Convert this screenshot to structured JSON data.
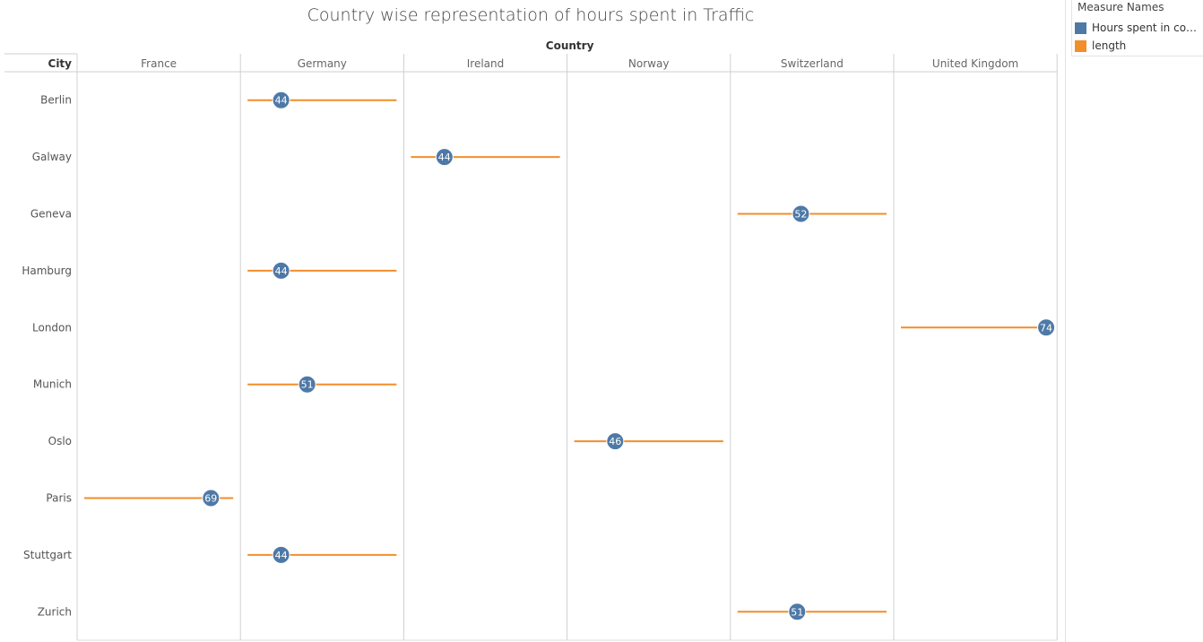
{
  "chart_data": {
    "type": "dot-plot",
    "title": "Country wise representation of hours spent in Traffic",
    "column_header": "Country",
    "row_header": "City",
    "countries": [
      "France",
      "Germany",
      "Ireland",
      "Norway",
      "Switzerland",
      "United Kingdom"
    ],
    "cities": [
      "Berlin",
      "Galway",
      "Geneva",
      "Hamburg",
      "London",
      "Munich",
      "Oslo",
      "Paris",
      "Stuttgart",
      "Zurich"
    ],
    "series": [
      {
        "name": "Hours spent in conge..",
        "color": "#4e79a7",
        "marker": "circle"
      },
      {
        "name": "length",
        "color": "#f28e2b",
        "marker": "line"
      }
    ],
    "xlim": [
      35,
      75
    ],
    "points": [
      {
        "city": "Berlin",
        "country": "Germany",
        "hours": 44,
        "label": "44"
      },
      {
        "city": "Galway",
        "country": "Ireland",
        "hours": 44,
        "label": "44"
      },
      {
        "city": "Geneva",
        "country": "Switzerland",
        "hours": 52,
        "label": "52"
      },
      {
        "city": "Hamburg",
        "country": "Germany",
        "hours": 44,
        "label": "44"
      },
      {
        "city": "London",
        "country": "United Kingdom",
        "hours": 74,
        "label": "74"
      },
      {
        "city": "Munich",
        "country": "Germany",
        "hours": 51,
        "label": "51"
      },
      {
        "city": "Oslo",
        "country": "Norway",
        "hours": 46,
        "label": "46"
      },
      {
        "city": "Paris",
        "country": "France",
        "hours": 69,
        "label": "69"
      },
      {
        "city": "Stuttgart",
        "country": "Germany",
        "hours": 44,
        "label": "44"
      },
      {
        "city": "Zurich",
        "country": "Switzerland",
        "hours": 51,
        "label": "51"
      }
    ]
  },
  "legend": {
    "title": "Measure Names",
    "items": [
      {
        "label": "Hours spent in conge..",
        "color": "#4e79a7"
      },
      {
        "label": "length",
        "color": "#f28e2b"
      }
    ]
  }
}
